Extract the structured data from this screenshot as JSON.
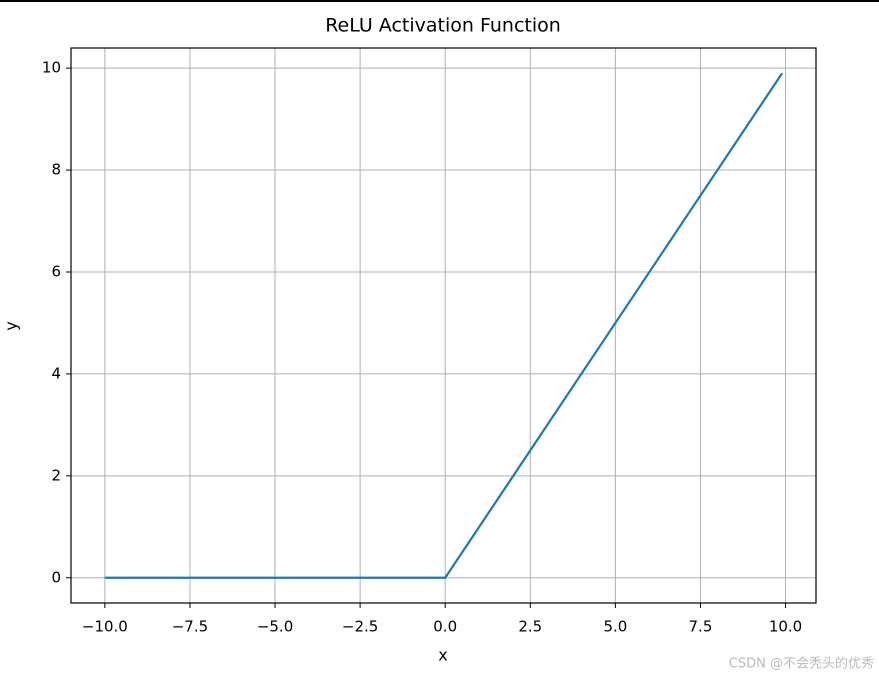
{
  "chart_data": {
    "type": "line",
    "title": "ReLU Activation Function",
    "x_label": "x",
    "y_label": "y",
    "x": [
      -10,
      0,
      9.9
    ],
    "series": [
      {
        "name": "ReLU",
        "color": "#1f77b4",
        "values": [
          0,
          0,
          9.9
        ]
      }
    ],
    "xlim": [
      -10.995,
      10.895
    ],
    "ylim": [
      -0.495,
      10.395
    ],
    "xticks": [
      {
        "value": -10,
        "label": "−10.0"
      },
      {
        "value": -7.5,
        "label": "−7.5"
      },
      {
        "value": -5,
        "label": "−5.0"
      },
      {
        "value": -2.5,
        "label": "−2.5"
      },
      {
        "value": 0,
        "label": "0.0"
      },
      {
        "value": 2.5,
        "label": "2.5"
      },
      {
        "value": 5,
        "label": "5.0"
      },
      {
        "value": 7.5,
        "label": "7.5"
      },
      {
        "value": 10,
        "label": "10.0"
      }
    ],
    "yticks": [
      0,
      2,
      4,
      6,
      8,
      10
    ],
    "grid": true
  },
  "watermark": "CSDN @不会秃头的优秀"
}
